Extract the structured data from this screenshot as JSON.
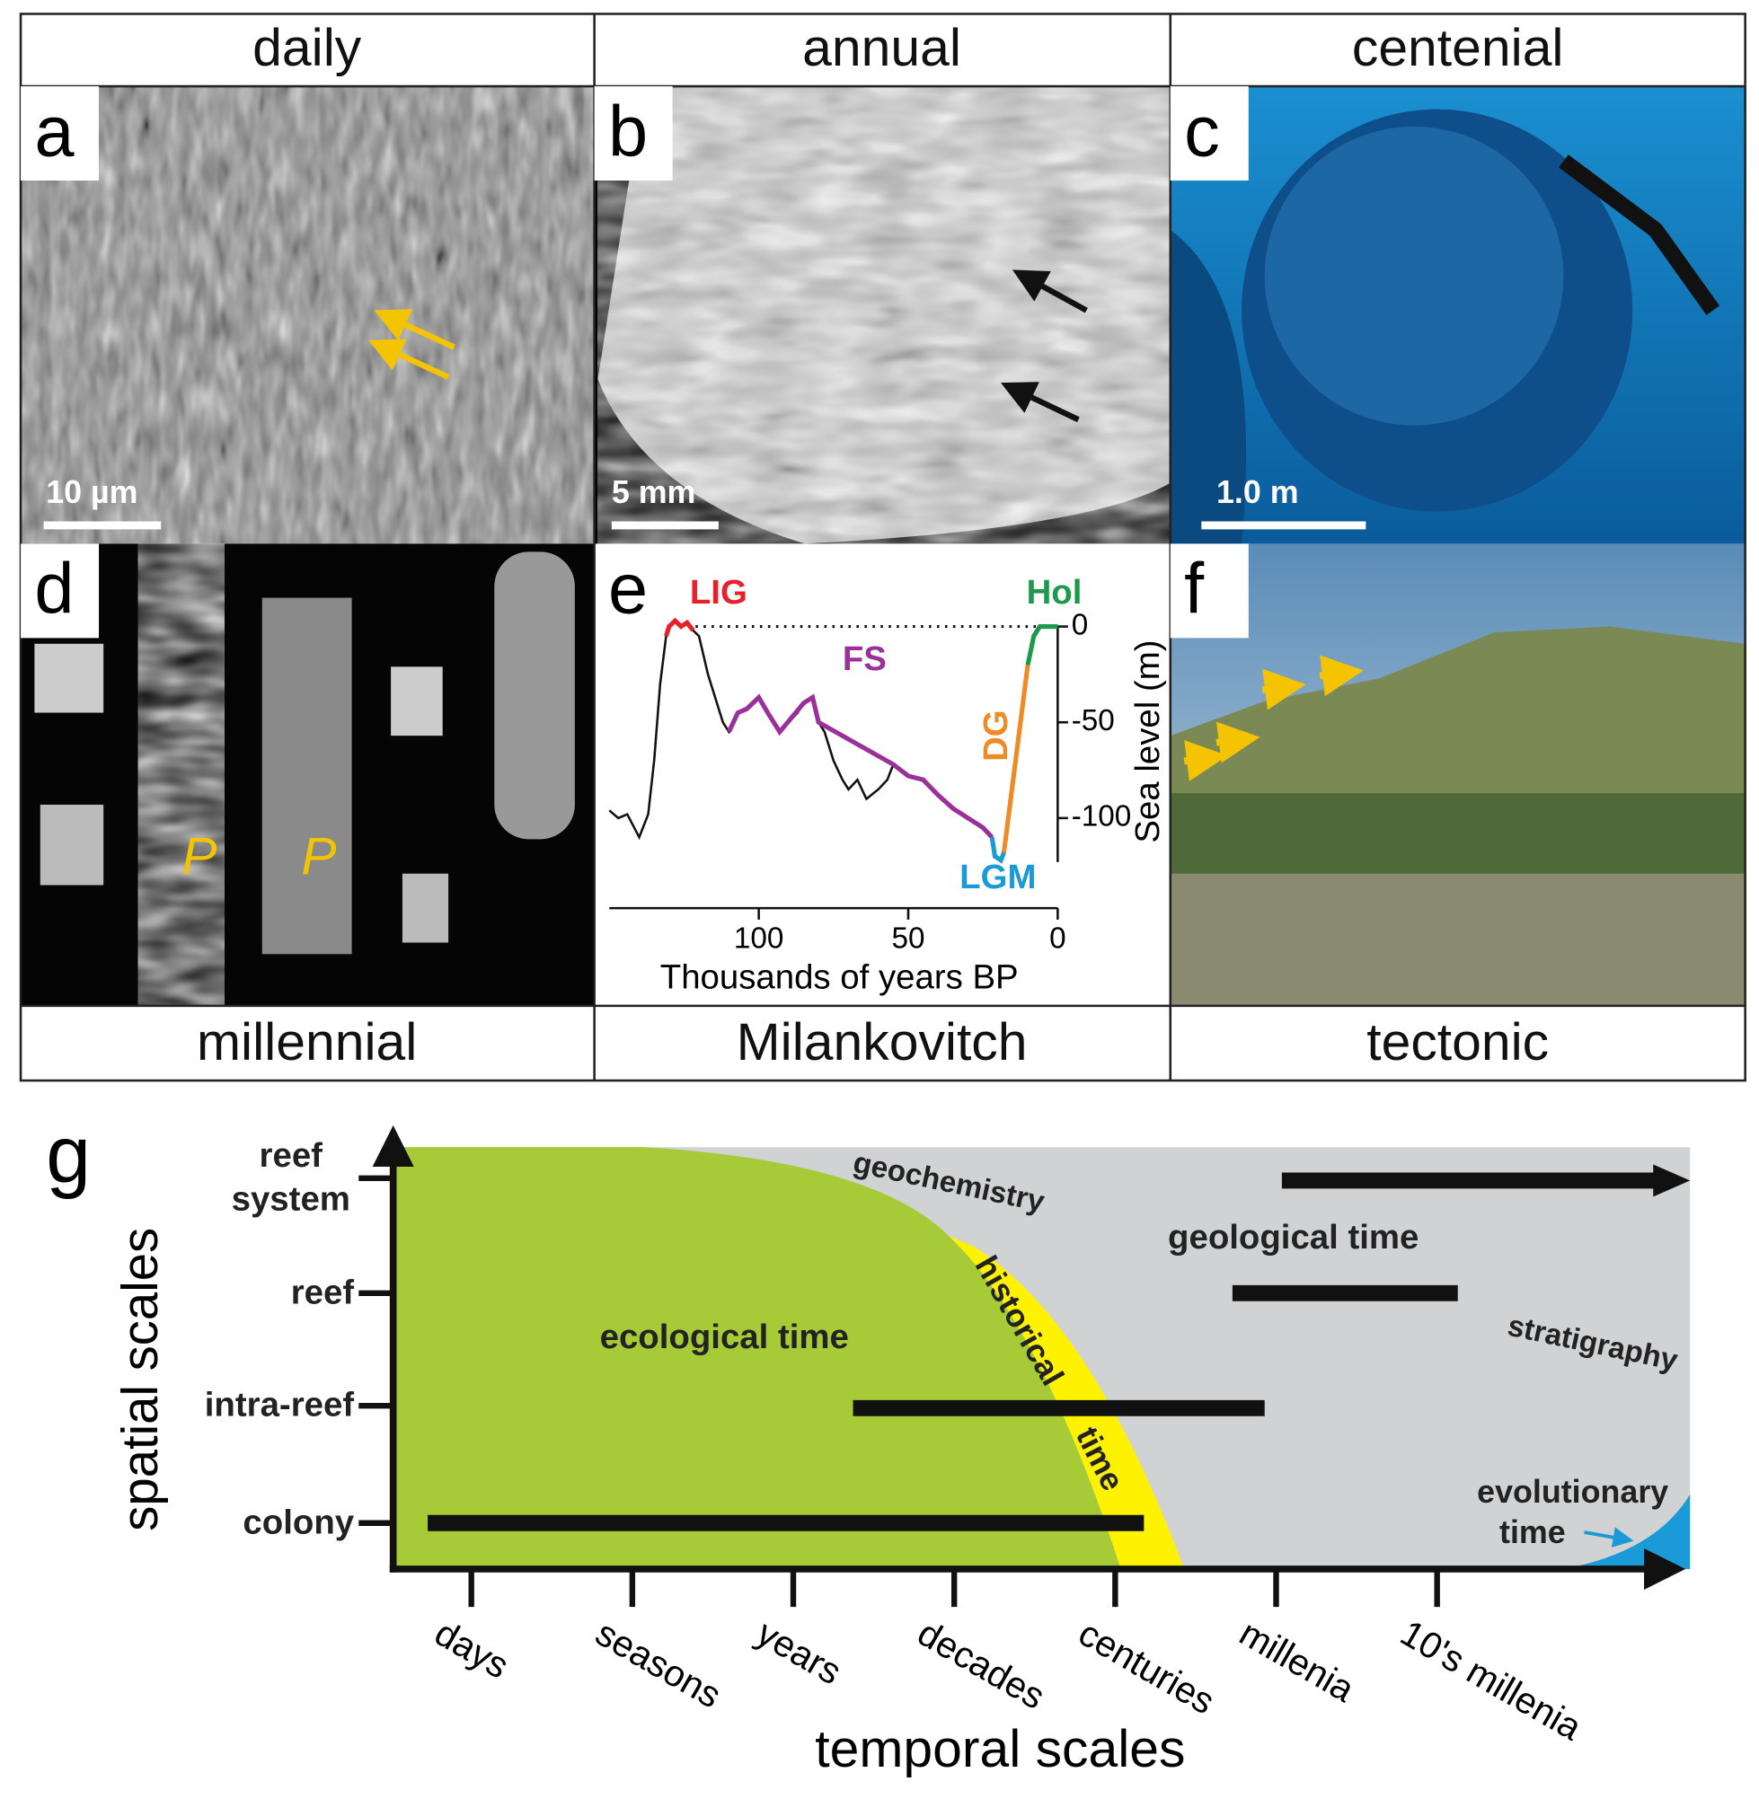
{
  "figure": {
    "columns_top": [
      "daily",
      "annual",
      "centenial"
    ],
    "columns_bottom": [
      "millennial",
      "Milankovitch",
      "tectonic"
    ],
    "panels": {
      "a": {
        "label": "a",
        "scale_bar": "10 µm"
      },
      "b": {
        "label": "b",
        "scale_bar": "5 mm"
      },
      "c": {
        "label": "c",
        "scale_bar": "1.0 m"
      },
      "d": {
        "label": "d",
        "annotations": [
          "P",
          "P"
        ]
      },
      "e": {
        "label": "e"
      },
      "f": {
        "label": "f"
      }
    },
    "g": {
      "label": "g",
      "y_title": "spatial scales",
      "x_title": "temporal scales",
      "y_levels": [
        "reef system",
        "reef",
        "intra-reef",
        "colony"
      ],
      "x_levels": [
        "days",
        "seasons",
        "years",
        "decades",
        "centuries",
        "millenia",
        "10's millenia"
      ],
      "regions": {
        "ecological": "ecological time",
        "geological": "geological time",
        "historical": [
          "historical",
          "time"
        ],
        "evolutionary": [
          "evolutionary",
          "time"
        ]
      },
      "methods": [
        "geochemistry",
        "stratigraphy"
      ]
    }
  },
  "chart_data": {
    "type": "line",
    "x_label": "Thousands of years BP",
    "y_label": "Sea level (m)",
    "xlim": [
      150,
      0
    ],
    "xticks": [
      100,
      50,
      0
    ],
    "ylim": [
      -123,
      3
    ],
    "yticks": [
      0,
      -50,
      -100
    ],
    "hline": 0,
    "series": [
      {
        "color": "#111111",
        "x": [
          150,
          147,
          144,
          140,
          137,
          135,
          133,
          131,
          130,
          128,
          126,
          124,
          122,
          120,
          117,
          114,
          112,
          110,
          107,
          104,
          100,
          97,
          93,
          90,
          87,
          85,
          82,
          80,
          78,
          75,
          72,
          70,
          67,
          64,
          60,
          57,
          55,
          50,
          45,
          40,
          35,
          30,
          25,
          22,
          21,
          19,
          18,
          10,
          8,
          6,
          0
        ],
        "values": [
          -96,
          -100,
          -98,
          -110,
          -98,
          -70,
          -30,
          -5,
          0,
          3,
          0,
          2,
          -2,
          -5,
          -25,
          -40,
          -50,
          -55,
          -45,
          -43,
          -37,
          -45,
          -55,
          -50,
          -45,
          -40,
          -37,
          -50,
          -55,
          -70,
          -80,
          -85,
          -80,
          -90,
          -85,
          -80,
          -72,
          -78,
          -80,
          -88,
          -95,
          -100,
          -105,
          -110,
          -120,
          -122,
          -118,
          -20,
          -5,
          0,
          0
        ]
      },
      {
        "name": "LIG",
        "color": "#e8202a",
        "x": [
          131,
          130,
          128,
          126,
          124,
          122
        ],
        "values": [
          -5,
          0,
          3,
          0,
          2,
          -2
        ]
      },
      {
        "name": "FS",
        "color": "#9b2f9b",
        "x": [
          110,
          107,
          104,
          100,
          97,
          93,
          85,
          82,
          80,
          55,
          50,
          45,
          40,
          35,
          30,
          25,
          22
        ],
        "values": [
          -55,
          -45,
          -43,
          -37,
          -45,
          -55,
          -40,
          -37,
          -50,
          -72,
          -78,
          -80,
          -88,
          -95,
          -100,
          -105,
          -110
        ]
      },
      {
        "name": "DG",
        "color": "#f08a24",
        "x": [
          18,
          10
        ],
        "values": [
          -118,
          -20
        ]
      },
      {
        "name": "LGM",
        "color": "#1a9ad6",
        "x": [
          22,
          21,
          19,
          18
        ],
        "values": [
          -110,
          -120,
          -122,
          -118
        ]
      },
      {
        "name": "Hol",
        "color": "#1a9a4a",
        "x": [
          10,
          8,
          6,
          0
        ],
        "values": [
          -20,
          -5,
          0,
          0
        ]
      }
    ]
  }
}
